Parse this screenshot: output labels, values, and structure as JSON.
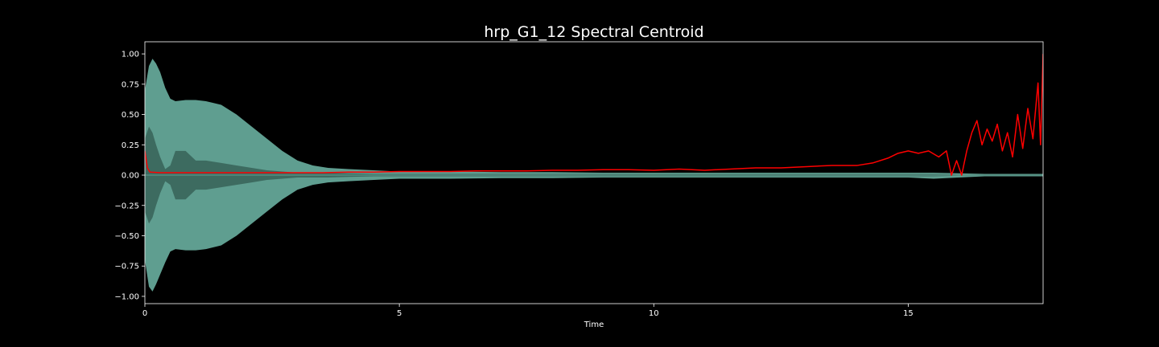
{
  "chart_data": {
    "type": "line",
    "title": "hrp_G1_12 Spectral Centroid",
    "xlabel": "Time",
    "ylabel": "",
    "xlim": [
      0,
      17.65
    ],
    "ylim": [
      -1.06,
      1.1
    ],
    "x_ticks": [
      0,
      5,
      10,
      15
    ],
    "x_tick_labels": [
      "0",
      "5",
      "10",
      "15"
    ],
    "y_ticks": [
      1.0,
      0.75,
      0.5,
      0.25,
      0.0,
      -0.25,
      -0.5,
      -0.75,
      -1.0
    ],
    "y_tick_labels": [
      "1.00",
      "0.75",
      "0.50",
      "0.25",
      "0.00",
      "−0.25",
      "−0.50",
      "−0.75",
      "−1.00"
    ],
    "grid": false,
    "colors": {
      "background": "#000000",
      "axes": "#ffffff",
      "waveform_outer": "#5f9e90",
      "waveform_inner": "#3d6b60",
      "centroid": "#ff0000"
    },
    "series": [
      {
        "kind": "waveform-envelope",
        "x": [
          0,
          0.08,
          0.15,
          0.22,
          0.3,
          0.4,
          0.5,
          0.6,
          0.8,
          1.0,
          1.2,
          1.5,
          1.8,
          2.1,
          2.4,
          2.7,
          3.0,
          3.3,
          3.6,
          4.0,
          4.5,
          5.0,
          6.0,
          7.0,
          8.0,
          9.0,
          10.0,
          11.0,
          12.0,
          13.0,
          14.0,
          15.0,
          15.5,
          16.0,
          16.5,
          17.0,
          17.65
        ],
        "upper": [
          0.7,
          0.9,
          0.96,
          0.92,
          0.85,
          0.72,
          0.63,
          0.61,
          0.62,
          0.62,
          0.61,
          0.58,
          0.5,
          0.4,
          0.3,
          0.2,
          0.12,
          0.08,
          0.06,
          0.05,
          0.04,
          0.03,
          0.03,
          0.025,
          0.025,
          0.02,
          0.02,
          0.02,
          0.02,
          0.02,
          0.02,
          0.02,
          0.02,
          0.015,
          0.01,
          0.01,
          0.01
        ],
        "lower": [
          -0.7,
          -0.92,
          -0.96,
          -0.9,
          -0.82,
          -0.72,
          -0.63,
          -0.61,
          -0.62,
          -0.62,
          -0.61,
          -0.58,
          -0.5,
          -0.4,
          -0.3,
          -0.2,
          -0.12,
          -0.08,
          -0.06,
          -0.05,
          -0.04,
          -0.03,
          -0.03,
          -0.025,
          -0.025,
          -0.02,
          -0.02,
          -0.02,
          -0.02,
          -0.02,
          -0.02,
          -0.02,
          -0.03,
          -0.02,
          -0.01,
          -0.01,
          -0.01
        ],
        "inner_upper": [
          0.3,
          0.4,
          0.35,
          0.25,
          0.15,
          0.05,
          0.08,
          0.2,
          0.2,
          0.12,
          0.12,
          0.1,
          0.08,
          0.06,
          0.04,
          0.03,
          0.02,
          0.02,
          0.02,
          0.015,
          0.01,
          0.01,
          0.01,
          0.01,
          0.01,
          0.01,
          0.01,
          0.01,
          0.01,
          0.01,
          0.01,
          0.01,
          0.01,
          0.005,
          0.005,
          0.005,
          0.005
        ],
        "inner_lower": [
          -0.3,
          -0.4,
          -0.35,
          -0.25,
          -0.15,
          -0.05,
          -0.08,
          -0.2,
          -0.2,
          -0.12,
          -0.12,
          -0.1,
          -0.08,
          -0.06,
          -0.04,
          -0.03,
          -0.02,
          -0.02,
          -0.02,
          -0.015,
          -0.01,
          -0.01,
          -0.01,
          -0.01,
          -0.01,
          -0.01,
          -0.01,
          -0.01,
          -0.01,
          -0.01,
          -0.01,
          -0.01,
          -0.01,
          -0.005,
          -0.005,
          -0.005,
          -0.005
        ]
      },
      {
        "kind": "centroid",
        "x": [
          0,
          0.05,
          0.1,
          0.3,
          0.6,
          1.0,
          1.5,
          2.0,
          2.5,
          3.0,
          3.5,
          4.0,
          4.5,
          5.0,
          5.5,
          6.0,
          6.5,
          7.0,
          7.5,
          8.0,
          8.5,
          9.0,
          9.5,
          10.0,
          10.5,
          11.0,
          11.5,
          12.0,
          12.5,
          13.0,
          13.5,
          14.0,
          14.3,
          14.6,
          14.8,
          15.0,
          15.2,
          15.4,
          15.6,
          15.75,
          15.85,
          15.95,
          16.05,
          16.15,
          16.25,
          16.35,
          16.45,
          16.55,
          16.65,
          16.75,
          16.85,
          16.95,
          17.05,
          17.15,
          17.25,
          17.35,
          17.45,
          17.55,
          17.6,
          17.65
        ],
        "y": [
          0.2,
          0.06,
          0.025,
          0.02,
          0.02,
          0.02,
          0.02,
          0.02,
          0.02,
          0.02,
          0.02,
          0.025,
          0.025,
          0.03,
          0.03,
          0.03,
          0.035,
          0.035,
          0.035,
          0.04,
          0.04,
          0.045,
          0.045,
          0.04,
          0.05,
          0.04,
          0.05,
          0.06,
          0.06,
          0.07,
          0.08,
          0.08,
          0.1,
          0.14,
          0.18,
          0.2,
          0.18,
          0.2,
          0.15,
          0.2,
          0.0,
          0.12,
          0.0,
          0.2,
          0.35,
          0.45,
          0.25,
          0.38,
          0.28,
          0.42,
          0.2,
          0.35,
          0.15,
          0.5,
          0.22,
          0.55,
          0.3,
          0.76,
          0.25,
          1.0
        ]
      }
    ]
  }
}
